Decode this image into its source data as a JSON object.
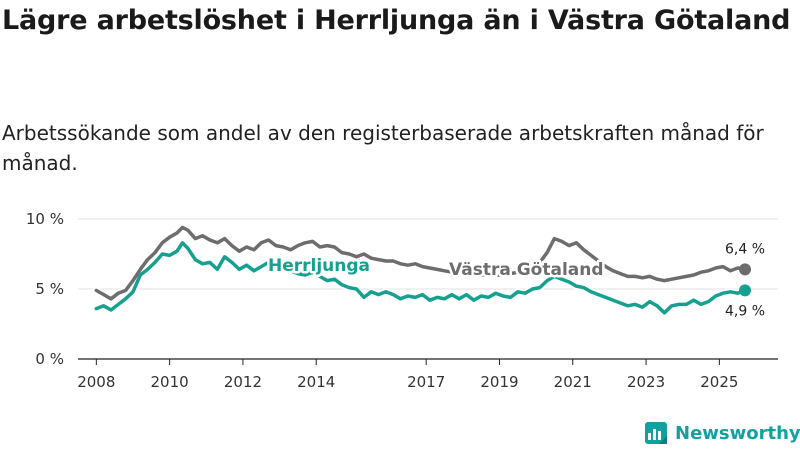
{
  "title": "Lägre arbetslöshet i Herrljunga än i Västra Götaland",
  "subtitle": "Arbetssökande som andel av den registerbaserade arbetskraften månad för månad.",
  "brand": "Newsworthy",
  "colors": {
    "herrljunga": "#16a090",
    "vastra": "#6d6d6d",
    "grid": "#e2e2e2",
    "axis": "#222222",
    "brand": "#12a0a0"
  },
  "chart_data": {
    "type": "line",
    "xlim": [
      2007.5,
      2026.6
    ],
    "ylim": [
      0,
      10
    ],
    "y_ticks": [
      0,
      5,
      10
    ],
    "y_tick_labels": [
      "0 %",
      "5 %",
      "10 %"
    ],
    "x_ticks": [
      2008,
      2010,
      2012,
      2014,
      2017,
      2019,
      2021,
      2023,
      2025
    ],
    "x_tick_labels": [
      "2008",
      "2010",
      "2012",
      "2014",
      "2017",
      "2019",
      "2021",
      "2023",
      "2025"
    ],
    "series": [
      {
        "name": "Västra Götaland",
        "label": "Västra Götaland",
        "end_label": "6,4 %",
        "points": [
          [
            2008.0,
            4.9
          ],
          [
            2008.2,
            4.6
          ],
          [
            2008.4,
            4.3
          ],
          [
            2008.6,
            4.7
          ],
          [
            2008.8,
            4.9
          ],
          [
            2009.0,
            5.6
          ],
          [
            2009.2,
            6.4
          ],
          [
            2009.4,
            7.1
          ],
          [
            2009.6,
            7.6
          ],
          [
            2009.8,
            8.3
          ],
          [
            2010.0,
            8.7
          ],
          [
            2010.2,
            9.0
          ],
          [
            2010.35,
            9.4
          ],
          [
            2010.5,
            9.2
          ],
          [
            2010.7,
            8.6
          ],
          [
            2010.9,
            8.8
          ],
          [
            2011.1,
            8.5
          ],
          [
            2011.3,
            8.3
          ],
          [
            2011.5,
            8.6
          ],
          [
            2011.7,
            8.1
          ],
          [
            2011.9,
            7.7
          ],
          [
            2012.1,
            8.0
          ],
          [
            2012.3,
            7.8
          ],
          [
            2012.5,
            8.3
          ],
          [
            2012.7,
            8.5
          ],
          [
            2012.9,
            8.1
          ],
          [
            2013.1,
            8.0
          ],
          [
            2013.3,
            7.8
          ],
          [
            2013.5,
            8.1
          ],
          [
            2013.7,
            8.3
          ],
          [
            2013.9,
            8.4
          ],
          [
            2014.1,
            8.0
          ],
          [
            2014.3,
            8.1
          ],
          [
            2014.5,
            8.0
          ],
          [
            2014.7,
            7.6
          ],
          [
            2014.9,
            7.5
          ],
          [
            2015.1,
            7.3
          ],
          [
            2015.3,
            7.5
          ],
          [
            2015.5,
            7.2
          ],
          [
            2015.7,
            7.1
          ],
          [
            2015.9,
            7.0
          ],
          [
            2016.1,
            7.0
          ],
          [
            2016.3,
            6.8
          ],
          [
            2016.5,
            6.7
          ],
          [
            2016.7,
            6.8
          ],
          [
            2016.9,
            6.6
          ],
          [
            2017.1,
            6.5
          ],
          [
            2017.3,
            6.4
          ],
          [
            2017.5,
            6.3
          ],
          [
            2017.7,
            6.2
          ],
          [
            2017.9,
            6.2
          ],
          [
            2018.1,
            6.2
          ],
          [
            2018.3,
            6.1
          ],
          [
            2018.5,
            6.0
          ],
          [
            2018.7,
            6.0
          ],
          [
            2018.9,
            6.0
          ],
          [
            2019.1,
            6.0
          ],
          [
            2019.3,
            6.1
          ],
          [
            2019.5,
            6.2
          ],
          [
            2019.7,
            6.4
          ],
          [
            2019.9,
            6.6
          ],
          [
            2020.1,
            6.9
          ],
          [
            2020.3,
            7.6
          ],
          [
            2020.5,
            8.6
          ],
          [
            2020.7,
            8.4
          ],
          [
            2020.9,
            8.1
          ],
          [
            2021.1,
            8.3
          ],
          [
            2021.3,
            7.8
          ],
          [
            2021.5,
            7.4
          ],
          [
            2021.7,
            7.0
          ],
          [
            2021.9,
            6.6
          ],
          [
            2022.1,
            6.3
          ],
          [
            2022.3,
            6.1
          ],
          [
            2022.5,
            5.9
          ],
          [
            2022.7,
            5.9
          ],
          [
            2022.9,
            5.8
          ],
          [
            2023.1,
            5.9
          ],
          [
            2023.3,
            5.7
          ],
          [
            2023.5,
            5.6
          ],
          [
            2023.7,
            5.7
          ],
          [
            2023.9,
            5.8
          ],
          [
            2024.1,
            5.9
          ],
          [
            2024.3,
            6.0
          ],
          [
            2024.5,
            6.2
          ],
          [
            2024.7,
            6.3
          ],
          [
            2024.9,
            6.5
          ],
          [
            2025.1,
            6.6
          ],
          [
            2025.3,
            6.3
          ],
          [
            2025.5,
            6.5
          ],
          [
            2025.7,
            6.4
          ]
        ]
      },
      {
        "name": "Herrljunga",
        "label": "Herrljunga",
        "end_label": "4,9 %",
        "points": [
          [
            2008.0,
            3.6
          ],
          [
            2008.2,
            3.8
          ],
          [
            2008.4,
            3.5
          ],
          [
            2008.6,
            3.9
          ],
          [
            2008.8,
            4.3
          ],
          [
            2009.0,
            4.8
          ],
          [
            2009.2,
            6.0
          ],
          [
            2009.4,
            6.4
          ],
          [
            2009.6,
            6.9
          ],
          [
            2009.8,
            7.5
          ],
          [
            2010.0,
            7.4
          ],
          [
            2010.2,
            7.7
          ],
          [
            2010.35,
            8.3
          ],
          [
            2010.5,
            7.9
          ],
          [
            2010.7,
            7.1
          ],
          [
            2010.9,
            6.8
          ],
          [
            2011.1,
            6.9
          ],
          [
            2011.3,
            6.4
          ],
          [
            2011.5,
            7.3
          ],
          [
            2011.7,
            6.9
          ],
          [
            2011.9,
            6.4
          ],
          [
            2012.1,
            6.7
          ],
          [
            2012.3,
            6.3
          ],
          [
            2012.5,
            6.6
          ],
          [
            2012.7,
            6.9
          ],
          [
            2012.9,
            6.6
          ],
          [
            2013.1,
            6.5
          ],
          [
            2013.3,
            6.3
          ],
          [
            2013.5,
            6.1
          ],
          [
            2013.7,
            6.0
          ],
          [
            2013.9,
            6.2
          ],
          [
            2014.1,
            5.9
          ],
          [
            2014.3,
            5.6
          ],
          [
            2014.5,
            5.7
          ],
          [
            2014.7,
            5.3
          ],
          [
            2014.9,
            5.1
          ],
          [
            2015.1,
            5.0
          ],
          [
            2015.3,
            4.4
          ],
          [
            2015.5,
            4.8
          ],
          [
            2015.7,
            4.6
          ],
          [
            2015.9,
            4.8
          ],
          [
            2016.1,
            4.6
          ],
          [
            2016.3,
            4.3
          ],
          [
            2016.5,
            4.5
          ],
          [
            2016.7,
            4.4
          ],
          [
            2016.9,
            4.6
          ],
          [
            2017.1,
            4.2
          ],
          [
            2017.3,
            4.4
          ],
          [
            2017.5,
            4.3
          ],
          [
            2017.7,
            4.6
          ],
          [
            2017.9,
            4.3
          ],
          [
            2018.1,
            4.6
          ],
          [
            2018.3,
            4.2
          ],
          [
            2018.5,
            4.5
          ],
          [
            2018.7,
            4.4
          ],
          [
            2018.9,
            4.7
          ],
          [
            2019.1,
            4.5
          ],
          [
            2019.3,
            4.4
          ],
          [
            2019.5,
            4.8
          ],
          [
            2019.7,
            4.7
          ],
          [
            2019.9,
            5.0
          ],
          [
            2020.1,
            5.1
          ],
          [
            2020.3,
            5.6
          ],
          [
            2020.5,
            5.9
          ],
          [
            2020.7,
            5.7
          ],
          [
            2020.9,
            5.5
          ],
          [
            2021.1,
            5.2
          ],
          [
            2021.3,
            5.1
          ],
          [
            2021.5,
            4.8
          ],
          [
            2021.7,
            4.6
          ],
          [
            2021.9,
            4.4
          ],
          [
            2022.1,
            4.2
          ],
          [
            2022.3,
            4.0
          ],
          [
            2022.5,
            3.8
          ],
          [
            2022.7,
            3.9
          ],
          [
            2022.9,
            3.7
          ],
          [
            2023.1,
            4.1
          ],
          [
            2023.3,
            3.8
          ],
          [
            2023.5,
            3.3
          ],
          [
            2023.7,
            3.8
          ],
          [
            2023.9,
            3.9
          ],
          [
            2024.1,
            3.9
          ],
          [
            2024.3,
            4.2
          ],
          [
            2024.5,
            3.9
          ],
          [
            2024.7,
            4.1
          ],
          [
            2024.9,
            4.5
          ],
          [
            2025.1,
            4.7
          ],
          [
            2025.3,
            4.8
          ],
          [
            2025.5,
            4.7
          ],
          [
            2025.7,
            4.9
          ]
        ]
      }
    ]
  }
}
